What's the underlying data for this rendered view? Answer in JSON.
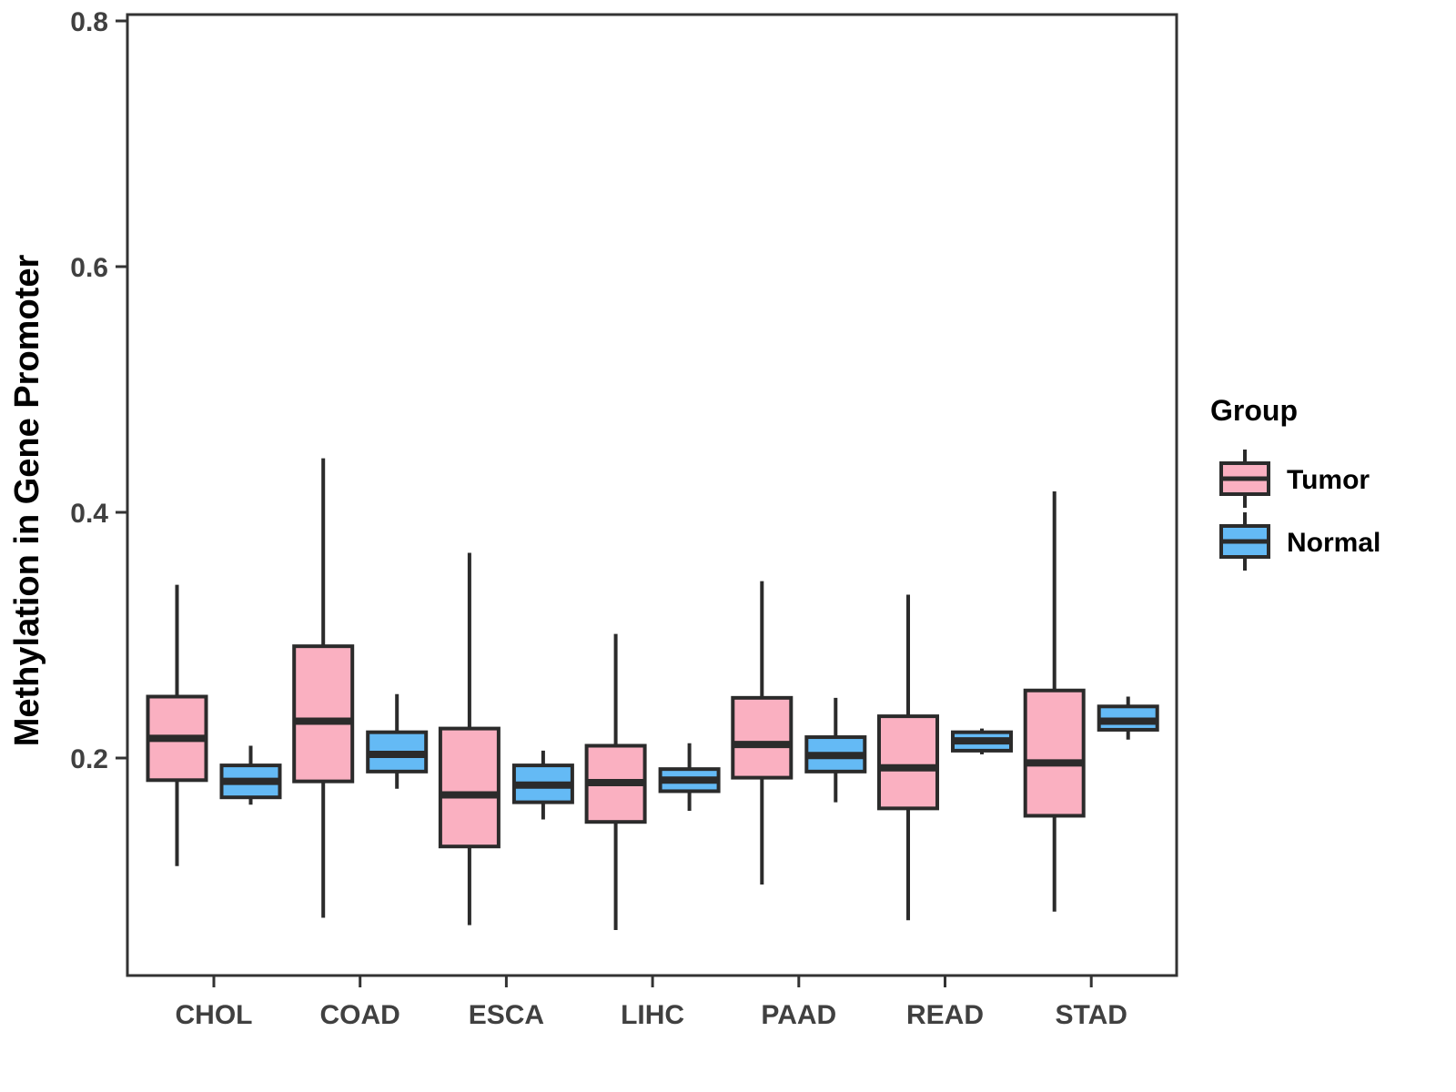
{
  "chart_data": {
    "type": "boxplot",
    "title": "",
    "xlabel": "",
    "ylabel": "Methylation in Gene Promoter",
    "categories": [
      "CHOL",
      "COAD",
      "ESCA",
      "LIHC",
      "PAAD",
      "READ",
      "STAD"
    ],
    "y_axis": {
      "tick_values": [
        0.2,
        0.4,
        0.6,
        0.8
      ],
      "tick_labels": [
        "0.2",
        "0.4",
        "0.6",
        "0.8"
      ],
      "range": [
        0.02,
        0.805
      ],
      "grid": false
    },
    "legend": {
      "title": "Group",
      "position": "right",
      "entries": [
        {
          "label": "Tumor",
          "color": "#FAB0C1"
        },
        {
          "label": "Normal",
          "color": "#64BAF5"
        }
      ]
    },
    "series": [
      {
        "name": "Tumor",
        "color": "#FAB0C1",
        "boxes": [
          {
            "category": "CHOL",
            "min": 0.112,
            "q1": 0.182,
            "median": 0.216,
            "q3": 0.25,
            "max": 0.341
          },
          {
            "category": "COAD",
            "min": 0.07,
            "q1": 0.181,
            "median": 0.23,
            "q3": 0.291,
            "max": 0.444
          },
          {
            "category": "ESCA",
            "min": 0.064,
            "q1": 0.128,
            "median": 0.17,
            "q3": 0.224,
            "max": 0.367
          },
          {
            "category": "LIHC",
            "min": 0.06,
            "q1": 0.148,
            "median": 0.18,
            "q3": 0.21,
            "max": 0.301
          },
          {
            "category": "PAAD",
            "min": 0.097,
            "q1": 0.184,
            "median": 0.211,
            "q3": 0.249,
            "max": 0.344
          },
          {
            "category": "READ",
            "min": 0.068,
            "q1": 0.159,
            "median": 0.192,
            "q3": 0.234,
            "max": 0.333
          },
          {
            "category": "STAD",
            "min": 0.075,
            "q1": 0.153,
            "median": 0.196,
            "q3": 0.255,
            "max": 0.417
          }
        ]
      },
      {
        "name": "Normal",
        "color": "#64BAF5",
        "boxes": [
          {
            "category": "CHOL",
            "min": 0.162,
            "q1": 0.168,
            "median": 0.181,
            "q3": 0.194,
            "max": 0.21
          },
          {
            "category": "COAD",
            "min": 0.175,
            "q1": 0.189,
            "median": 0.203,
            "q3": 0.221,
            "max": 0.252
          },
          {
            "category": "ESCA",
            "min": 0.15,
            "q1": 0.164,
            "median": 0.178,
            "q3": 0.194,
            "max": 0.206
          },
          {
            "category": "LIHC",
            "min": 0.157,
            "q1": 0.173,
            "median": 0.182,
            "q3": 0.191,
            "max": 0.212
          },
          {
            "category": "PAAD",
            "min": 0.164,
            "q1": 0.189,
            "median": 0.202,
            "q3": 0.217,
            "max": 0.249
          },
          {
            "category": "READ",
            "min": 0.203,
            "q1": 0.206,
            "median": 0.214,
            "q3": 0.221,
            "max": 0.224
          },
          {
            "category": "STAD",
            "min": 0.215,
            "q1": 0.223,
            "median": 0.23,
            "q3": 0.242,
            "max": 0.25
          }
        ]
      }
    ],
    "style_colors": {
      "box_stroke": "#2b2b2b",
      "panel_border": "#333333",
      "tick_mark": "#333333",
      "tick_label": "#404040"
    }
  }
}
